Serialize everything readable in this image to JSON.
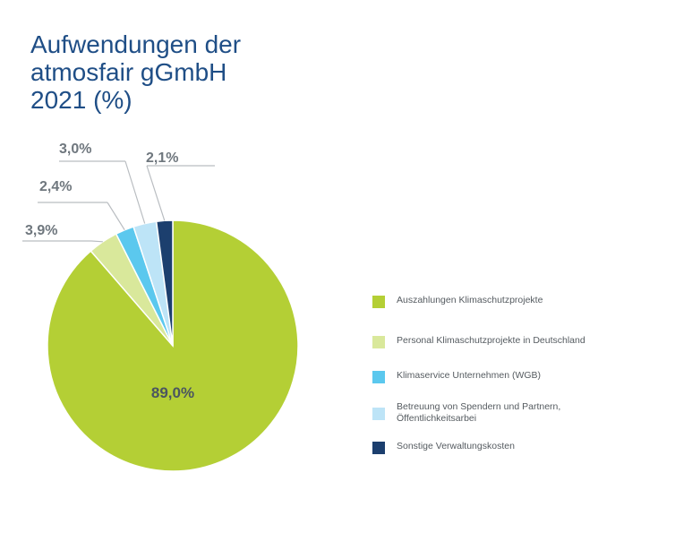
{
  "title_lines": [
    "Aufwendungen der",
    "atmosfair gGmbH",
    "2021 (%)"
  ],
  "chart_data": {
    "type": "pie",
    "title": "Aufwendungen der atmosfair gGmbH 2021 (%)",
    "slices": [
      {
        "label": "Auszahlungen Klimaschutzprojekte",
        "value": 89.0,
        "value_label": "89,0%",
        "color": "#b4cf35"
      },
      {
        "label": "Personal Klimaschutzprojekte in Deutschland",
        "value": 3.9,
        "value_label": "3,9%",
        "color": "#d9e89b"
      },
      {
        "label": "Klimaservice Unternehmen (WGB)",
        "value": 2.4,
        "value_label": "2,4%",
        "color": "#5bc8ee"
      },
      {
        "label": "Betreuung von Spendern und Partnern, Öffentlichkeitsarbei",
        "value": 3.0,
        "value_label": "3,0%",
        "color": "#bde4f7"
      },
      {
        "label": "Sonstige Verwaltungskosten",
        "value": 2.1,
        "value_label": "2,1%",
        "color": "#1c3f6e"
      }
    ],
    "legend_position": "right"
  },
  "legend": [
    {
      "label_lines": [
        "Auszahlungen Klimaschutzprojekte"
      ],
      "color": "#b4cf35"
    },
    {
      "label_lines": [
        "Personal Klimaschutzprojekte in Deutschland"
      ],
      "color": "#d9e89b"
    },
    {
      "label_lines": [
        "Klimaservice Unternehmen (WGB)"
      ],
      "color": "#5bc8ee"
    },
    {
      "label_lines": [
        "Betreuung von Spendern und Partnern,",
        "Öffentlichkeitsarbei"
      ],
      "color": "#bde4f7"
    },
    {
      "label_lines": [
        "Sonstige Verwaltungskosten"
      ],
      "color": "#1c3f6e"
    }
  ]
}
